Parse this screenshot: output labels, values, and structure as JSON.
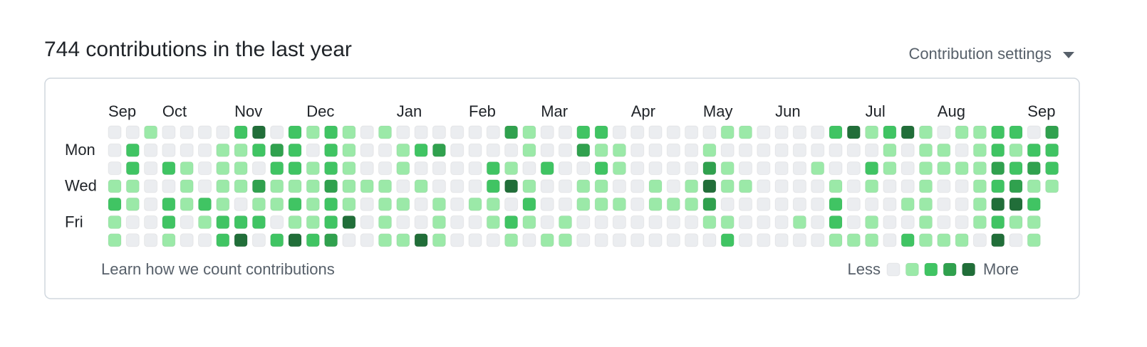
{
  "header": {
    "title": "744 contributions in the last year",
    "settings": "Contribution settings"
  },
  "graph": {
    "months": [
      {
        "label": "Sep",
        "week": 0
      },
      {
        "label": "Oct",
        "week": 3
      },
      {
        "label": "Nov",
        "week": 7
      },
      {
        "label": "Dec",
        "week": 11
      },
      {
        "label": "Jan",
        "week": 16
      },
      {
        "label": "Feb",
        "week": 20
      },
      {
        "label": "Mar",
        "week": 24
      },
      {
        "label": "Apr",
        "week": 29
      },
      {
        "label": "May",
        "week": 33
      },
      {
        "label": "Jun",
        "week": 37
      },
      {
        "label": "Jul",
        "week": 42
      },
      {
        "label": "Aug",
        "week": 46
      },
      {
        "label": "Sep",
        "week": 51
      }
    ],
    "day_labels": [
      null,
      "Mon",
      null,
      "Wed",
      null,
      "Fri",
      null
    ],
    "level_colors": [
      "#ebedf0",
      "#9be9a8",
      "#40c463",
      "#30a14e",
      "#216e39"
    ],
    "rows": [
      [
        0,
        0,
        1,
        0,
        0,
        0,
        0,
        2,
        4,
        0,
        2,
        1,
        2,
        1,
        0,
        1,
        0,
        0,
        0,
        0,
        0,
        0,
        3,
        1,
        0,
        0,
        2,
        2,
        0,
        0,
        0,
        0,
        0,
        0,
        1,
        1,
        0,
        0,
        0,
        0,
        2,
        4,
        1,
        2,
        4,
        1,
        0,
        1,
        1,
        2,
        2,
        0,
        3
      ],
      [
        0,
        2,
        0,
        0,
        0,
        0,
        1,
        1,
        2,
        3,
        2,
        0,
        2,
        1,
        0,
        0,
        1,
        2,
        3,
        0,
        0,
        0,
        0,
        1,
        0,
        0,
        3,
        1,
        1,
        0,
        0,
        0,
        0,
        1,
        0,
        0,
        0,
        0,
        0,
        0,
        0,
        0,
        0,
        1,
        0,
        1,
        1,
        0,
        1,
        2,
        1,
        2,
        2
      ],
      [
        0,
        2,
        0,
        2,
        1,
        0,
        1,
        1,
        0,
        2,
        2,
        1,
        2,
        1,
        0,
        0,
        1,
        0,
        0,
        0,
        0,
        2,
        1,
        0,
        2,
        0,
        0,
        2,
        1,
        0,
        0,
        0,
        0,
        3,
        1,
        0,
        0,
        0,
        0,
        1,
        0,
        0,
        2,
        1,
        0,
        1,
        1,
        1,
        1,
        3,
        2,
        3,
        2
      ],
      [
        1,
        1,
        0,
        0,
        1,
        0,
        1,
        1,
        3,
        1,
        1,
        1,
        3,
        1,
        1,
        1,
        0,
        1,
        0,
        0,
        0,
        2,
        4,
        1,
        0,
        0,
        1,
        1,
        0,
        0,
        1,
        0,
        1,
        4,
        1,
        1,
        0,
        0,
        0,
        0,
        1,
        0,
        1,
        0,
        0,
        1,
        0,
        0,
        1,
        2,
        3,
        1,
        1
      ],
      [
        2,
        1,
        0,
        2,
        1,
        2,
        1,
        0,
        1,
        1,
        2,
        1,
        2,
        1,
        0,
        1,
        1,
        0,
        1,
        0,
        1,
        1,
        0,
        2,
        0,
        0,
        1,
        1,
        1,
        0,
        1,
        1,
        1,
        3,
        0,
        0,
        0,
        0,
        0,
        0,
        2,
        0,
        0,
        0,
        1,
        1,
        0,
        0,
        1,
        4,
        4,
        2,
        null
      ],
      [
        1,
        0,
        0,
        2,
        0,
        1,
        2,
        2,
        2,
        0,
        1,
        1,
        2,
        4,
        0,
        1,
        0,
        0,
        1,
        0,
        0,
        1,
        2,
        1,
        0,
        1,
        0,
        0,
        0,
        0,
        0,
        0,
        0,
        1,
        1,
        0,
        0,
        0,
        1,
        0,
        2,
        0,
        1,
        0,
        0,
        1,
        0,
        0,
        1,
        2,
        1,
        1,
        null
      ],
      [
        1,
        0,
        0,
        1,
        0,
        0,
        2,
        4,
        0,
        2,
        4,
        2,
        3,
        0,
        0,
        1,
        1,
        4,
        1,
        0,
        0,
        0,
        1,
        0,
        1,
        1,
        0,
        0,
        0,
        0,
        0,
        0,
        0,
        0,
        2,
        0,
        0,
        0,
        0,
        0,
        1,
        1,
        1,
        0,
        2,
        1,
        1,
        1,
        0,
        4,
        0,
        1,
        null
      ]
    ]
  },
  "footer": {
    "link": "Learn how we count contributions",
    "less": "Less",
    "more": "More"
  }
}
